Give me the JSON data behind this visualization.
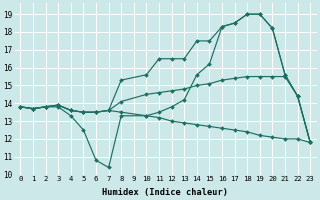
{
  "xlabel": "Humidex (Indice chaleur)",
  "xlim": [
    -0.5,
    23.5
  ],
  "ylim": [
    10,
    19.6
  ],
  "yticks": [
    10,
    11,
    12,
    13,
    14,
    15,
    16,
    17,
    18,
    19
  ],
  "xticks": [
    0,
    1,
    2,
    3,
    4,
    5,
    6,
    7,
    8,
    9,
    10,
    11,
    12,
    13,
    14,
    15,
    16,
    17,
    18,
    19,
    20,
    21,
    22,
    23
  ],
  "bg_color": "#cce8e8",
  "grid_color": "#ffffff",
  "line_color": "#1e6e62",
  "lines": [
    {
      "x": [
        0,
        1,
        2,
        3,
        4,
        5,
        6,
        7,
        8,
        10,
        11,
        12,
        13,
        14,
        15,
        16,
        17,
        18,
        19,
        20,
        21,
        22,
        23
      ],
      "y": [
        13.8,
        13.7,
        13.8,
        13.8,
        13.3,
        12.5,
        10.8,
        10.4,
        13.3,
        13.3,
        13.5,
        13.8,
        14.2,
        15.6,
        16.2,
        18.3,
        18.5,
        19.0,
        19.0,
        18.2,
        15.6,
        14.4,
        11.8
      ]
    },
    {
      "x": [
        0,
        1,
        2,
        3,
        4,
        5,
        6,
        7,
        8,
        10,
        11,
        12,
        13,
        14,
        15,
        16,
        17,
        18,
        19,
        20,
        21,
        22,
        23
      ],
      "y": [
        13.8,
        13.7,
        13.8,
        13.9,
        13.6,
        13.5,
        13.5,
        13.6,
        15.3,
        15.6,
        16.5,
        16.5,
        16.5,
        17.5,
        17.5,
        18.3,
        18.5,
        19.0,
        19.0,
        18.2,
        15.6,
        14.4,
        11.8
      ]
    },
    {
      "x": [
        0,
        1,
        2,
        3,
        4,
        5,
        6,
        7,
        8,
        10,
        11,
        12,
        13,
        14,
        15,
        16,
        17,
        18,
        19,
        20,
        21,
        22,
        23
      ],
      "y": [
        13.8,
        13.7,
        13.8,
        13.9,
        13.6,
        13.5,
        13.5,
        13.6,
        14.1,
        14.5,
        14.6,
        14.7,
        14.8,
        15.0,
        15.1,
        15.3,
        15.4,
        15.5,
        15.5,
        15.5,
        15.5,
        14.4,
        11.8
      ]
    },
    {
      "x": [
        0,
        1,
        2,
        3,
        4,
        5,
        6,
        7,
        8,
        10,
        11,
        12,
        13,
        14,
        15,
        16,
        17,
        18,
        19,
        20,
        21,
        22,
        23
      ],
      "y": [
        13.8,
        13.7,
        13.8,
        13.9,
        13.6,
        13.5,
        13.5,
        13.6,
        13.5,
        13.3,
        13.2,
        13.0,
        12.9,
        12.8,
        12.7,
        12.6,
        12.5,
        12.4,
        12.2,
        12.1,
        12.0,
        12.0,
        11.8
      ]
    }
  ],
  "figsize": [
    3.2,
    2.0
  ],
  "dpi": 100
}
